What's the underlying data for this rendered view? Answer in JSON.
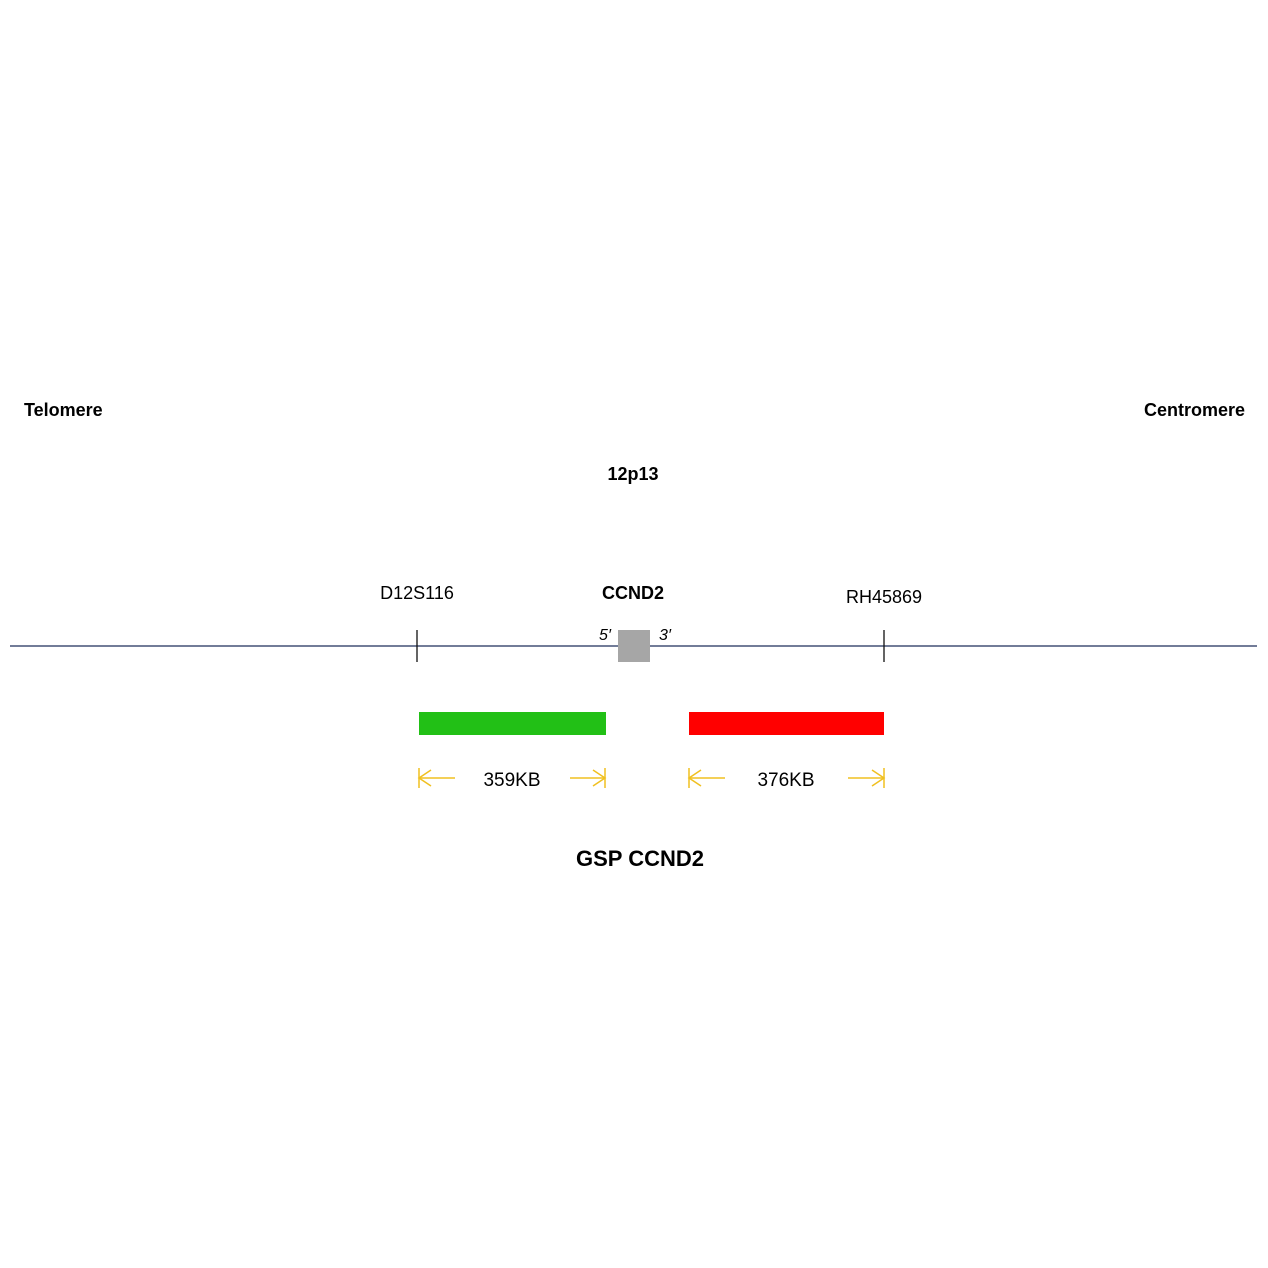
{
  "labels": {
    "telomere": "Telomere",
    "centromere": "Centromere",
    "band": "12p13",
    "marker_left": "D12S116",
    "gene": "CCND2",
    "marker_right": "RH45869",
    "five_prime": "5′",
    "three_prime": "3′",
    "probe_name": "GSP CCND2"
  },
  "probes": [
    {
      "size_label": "359KB",
      "color": "#22c016"
    },
    {
      "size_label": "376KB",
      "color": "#ff0000"
    }
  ],
  "colors": {
    "chromosome_line": "#1f2d5a",
    "gene_box": "#a6a6a6",
    "size_arrow": "#f0c020"
  }
}
